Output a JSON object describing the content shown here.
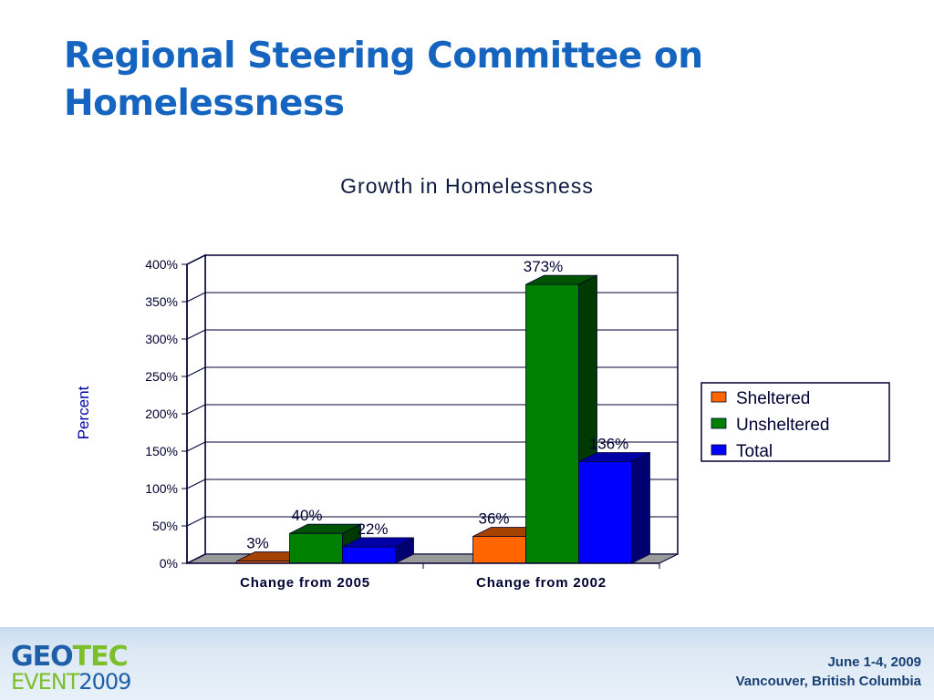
{
  "slide": {
    "title": "Regional Steering Committee on Homelessness"
  },
  "footer": {
    "logo": {
      "geo": "GEO",
      "tec": "TEC",
      "event": "EVENT",
      "year": "2009"
    },
    "dates": "June 1-4, 2009",
    "location": "Vancouver, British Columbia"
  },
  "colors": {
    "title": "#1565c0",
    "sheltered": "#ff6600",
    "unsheltered": "#008000",
    "total": "#0000ff"
  },
  "chart_data": {
    "type": "bar",
    "title": "Growth in Homelessness",
    "xlabel": "",
    "ylabel": "Percent",
    "categories": [
      "Change from 2005",
      "Change from 2002"
    ],
    "series": [
      {
        "name": "Sheltered",
        "values": [
          3,
          36
        ],
        "labels": [
          "3%",
          "36%"
        ],
        "color": "#ff6600"
      },
      {
        "name": "Unsheltered",
        "values": [
          40,
          373
        ],
        "labels": [
          "40%",
          "373%"
        ],
        "color": "#008000"
      },
      {
        "name": "Total",
        "values": [
          22,
          136
        ],
        "labels": [
          "22%",
          "136%"
        ],
        "color": "#0000ff"
      }
    ],
    "ylim": [
      0,
      400
    ],
    "yticks": [
      "0%",
      "50%",
      "100%",
      "150%",
      "200%",
      "250%",
      "300%",
      "350%",
      "400%"
    ],
    "grid": true,
    "legend": "right",
    "style": "3d-clustered-column"
  }
}
